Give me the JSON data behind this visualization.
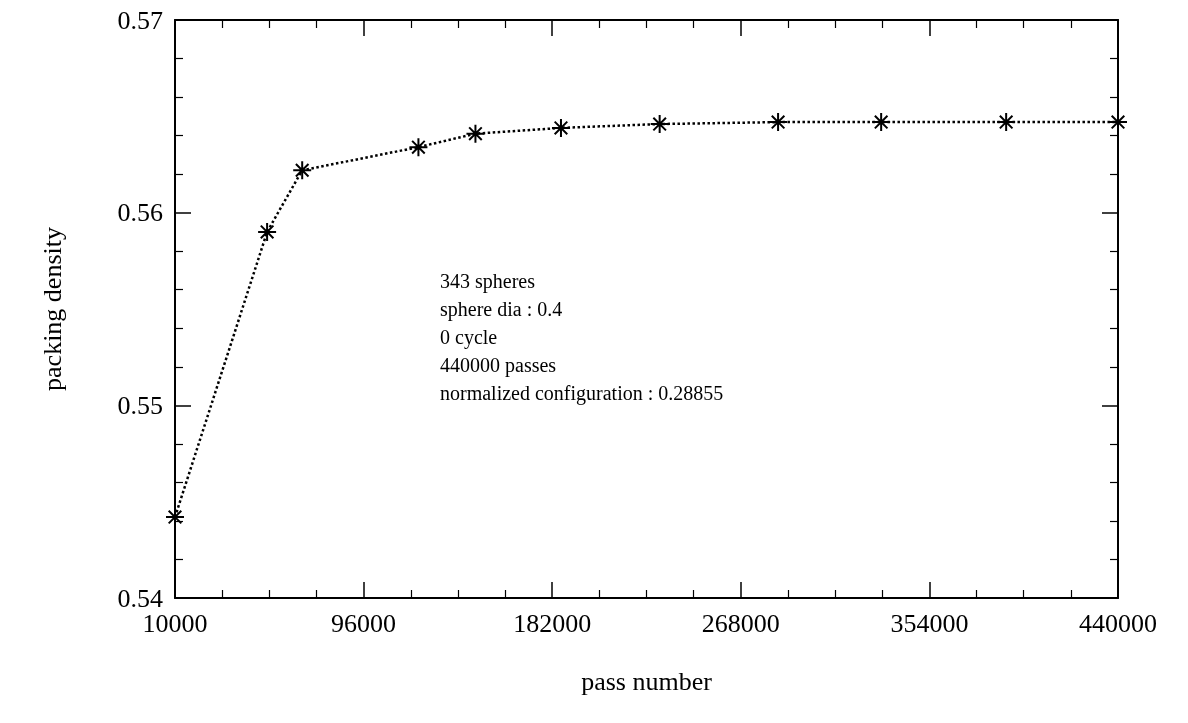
{
  "chart_data": {
    "type": "line",
    "xlabel": "pass number",
    "ylabel": "packing density",
    "x": [
      10000,
      52000,
      68000,
      121000,
      147000,
      186000,
      231000,
      285000,
      332000,
      389000,
      440000
    ],
    "series": [
      {
        "color": "#000000",
        "values": [
          0.5442,
          0.559,
          0.5622,
          0.5634,
          0.5641,
          0.5644,
          0.5646,
          0.5647,
          0.5647,
          0.5647,
          0.5647
        ]
      }
    ],
    "xlim": [
      10000,
      440000
    ],
    "xticks": [
      10000,
      96000,
      182000,
      268000,
      354000,
      440000
    ],
    "ylim": [
      0.54,
      0.57
    ],
    "yticks": [
      0.54,
      0.55,
      0.56,
      0.57
    ],
    "annotations": [
      "343 spheres",
      "sphere dia : 0.4",
      "0 cycle",
      "440000 passes",
      "normalized configuration : 0.28855"
    ],
    "grid": false,
    "marker": "cross",
    "line_style": "dotted"
  }
}
